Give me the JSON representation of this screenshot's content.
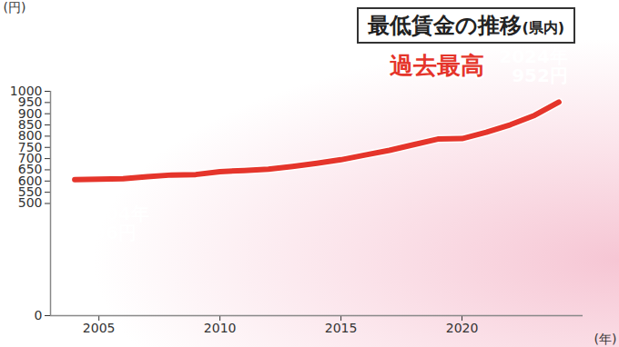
{
  "chart_data": {
    "type": "line",
    "title": "最低賃金の推移(県内)",
    "x": [
      2004,
      2005,
      2006,
      2007,
      2008,
      2009,
      2010,
      2011,
      2012,
      2013,
      2014,
      2015,
      2016,
      2017,
      2018,
      2019,
      2020,
      2021,
      2022,
      2023,
      2024
    ],
    "values": [
      606,
      608,
      610,
      619,
      627,
      629,
      642,
      647,
      653,
      665,
      679,
      695,
      716,
      737,
      762,
      787,
      789,
      817,
      851,
      893,
      952
    ],
    "color": "#e5352b",
    "xlabel": "(年)",
    "ylabel": "(円)",
    "xlim": [
      2003,
      2025
    ],
    "xticks": [
      2005,
      2010,
      2015,
      2020
    ],
    "ylim": [
      0,
      1000
    ],
    "yticks": [
      0,
      500,
      550,
      600,
      650,
      700,
      750,
      800,
      850,
      900,
      950,
      1000
    ],
    "grid": false,
    "point_labels": [
      {
        "x": 2004,
        "text": "2004年\n606円"
      },
      {
        "x": 2024,
        "text": "2024年\n952円"
      }
    ],
    "annotation": "過去最高"
  }
}
